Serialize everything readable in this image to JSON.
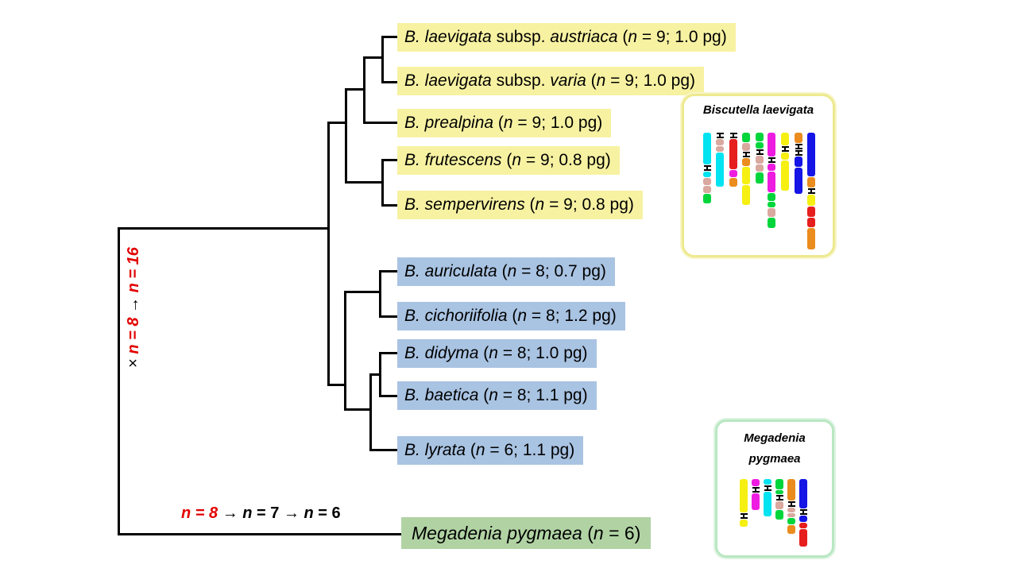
{
  "figure": {
    "background": "#ffffff",
    "branch_color": "#000000",
    "red_accent": "#e20000",
    "group_colors": {
      "n9_yellow": "#f7f2a2",
      "n8_blue": "#a9c3e2",
      "outgroup_green": "#b1d3a4"
    }
  },
  "tree": {
    "newick": "(((((B_laevigata_subsp_austriaca,B_laevigata_subsp_varia),B_prealpina),(B_frutescens,B_sempervirens)),((B_auriculata,B_cichoriifolia),((B_didyma,B_baetica),B_lyrata))),Megadenia_pygmaea);"
  },
  "taxa": [
    {
      "group": "n9_yellow",
      "bg": "#f7f2a2",
      "runs": [
        {
          "t": "B. laevigata",
          "i": 1
        },
        {
          "t": " subsp. "
        },
        {
          "t": "austriaca",
          "i": 1
        },
        {
          "t": " ("
        },
        {
          "t": "n",
          "i": 1
        },
        {
          "t": " = 9; 1.0 pg)"
        }
      ]
    },
    {
      "group": "n9_yellow",
      "bg": "#f7f2a2",
      "runs": [
        {
          "t": "B. laevigata",
          "i": 1
        },
        {
          "t": " subsp. "
        },
        {
          "t": "varia",
          "i": 1
        },
        {
          "t": " ("
        },
        {
          "t": "n",
          "i": 1
        },
        {
          "t": " = 9; 1.0 pg)"
        }
      ]
    },
    {
      "group": "n9_yellow",
      "bg": "#f7f2a2",
      "runs": [
        {
          "t": "B. prealpina",
          "i": 1
        },
        {
          "t": " ("
        },
        {
          "t": "n",
          "i": 1
        },
        {
          "t": " = 9; 1.0 pg)"
        }
      ]
    },
    {
      "group": "n9_yellow",
      "bg": "#f7f2a2",
      "runs": [
        {
          "t": "B. frutescens",
          "i": 1
        },
        {
          "t": " ("
        },
        {
          "t": "n",
          "i": 1
        },
        {
          "t": " = 9; 0.8 pg)"
        }
      ]
    },
    {
      "group": "n9_yellow",
      "bg": "#f7f2a2",
      "runs": [
        {
          "t": "B. sempervirens",
          "i": 1
        },
        {
          "t": " ("
        },
        {
          "t": "n",
          "i": 1
        },
        {
          "t": " = 9; 0.8 pg)"
        }
      ]
    },
    {
      "group": "n8_blue",
      "bg": "#a9c3e2",
      "runs": [
        {
          "t": "B. auriculata",
          "i": 1
        },
        {
          "t": " ("
        },
        {
          "t": "n",
          "i": 1
        },
        {
          "t": " = 8; 0.7 pg)"
        }
      ]
    },
    {
      "group": "n8_blue",
      "bg": "#a9c3e2",
      "runs": [
        {
          "t": "B. cichoriifolia",
          "i": 1
        },
        {
          "t": " ("
        },
        {
          "t": "n",
          "i": 1
        },
        {
          "t": " = 8; 1.2 pg)"
        }
      ]
    },
    {
      "group": "n8_blue",
      "bg": "#a9c3e2",
      "runs": [
        {
          "t": "B. didyma",
          "i": 1
        },
        {
          "t": " ("
        },
        {
          "t": "n",
          "i": 1
        },
        {
          "t": " = 8; 1.0 pg)"
        }
      ]
    },
    {
      "group": "n8_blue",
      "bg": "#a9c3e2",
      "runs": [
        {
          "t": "B. baetica",
          "i": 1
        },
        {
          "t": " ("
        },
        {
          "t": "n",
          "i": 1
        },
        {
          "t": " = 8; 1.1 pg)"
        }
      ]
    },
    {
      "group": "n8_blue",
      "bg": "#a9c3e2",
      "runs": [
        {
          "t": "B. lyrata",
          "i": 1
        },
        {
          "t": " ("
        },
        {
          "t": "n",
          "i": 1
        },
        {
          "t": " = 6; 1.1 pg)"
        }
      ]
    },
    {
      "group": "outgroup_green",
      "bg": "#b1d3a4",
      "runs": [
        {
          "t": "Megadenia pygmaea",
          "i": 1
        },
        {
          "t": " ("
        },
        {
          "t": "n",
          "i": 1
        },
        {
          "t": " = 6)"
        }
      ]
    }
  ],
  "annotations": {
    "vertical_branch": {
      "runs": [
        {
          "t": "× "
        },
        {
          "t": "n = 8",
          "i": 1,
          "b": 1,
          "c": "#e20000"
        },
        {
          "t": " → ",
          "b": 1
        },
        {
          "t": "n = 16",
          "i": 1,
          "b": 1,
          "c": "#e20000"
        }
      ]
    },
    "bottom_branch": {
      "runs": [
        {
          "t": "n = 8",
          "i": 1,
          "b": 1,
          "c": "#e20000"
        },
        {
          "t": " → "
        },
        {
          "t": "n",
          "i": 1,
          "b": 1
        },
        {
          "t": " = 7",
          "b": 1
        },
        {
          "t": " → "
        },
        {
          "t": "n",
          "i": 1,
          "b": 1
        },
        {
          "t": " =  6",
          "b": 1
        }
      ]
    }
  },
  "palette": {
    "cyan": "#00e3f0",
    "tan": "#d9a89f",
    "green": "#00d53c",
    "red": "#e61e1e",
    "magenta": "#ee1ce0",
    "orange": "#ea8c1e",
    "yellow": "#f6ef12",
    "blue": "#1515e6"
  },
  "insets": [
    {
      "title_lines": [
        "Biscutella laevigata"
      ],
      "border": "#ede98f",
      "chromosomes": [
        [
          [
            "cyan",
            40
          ],
          "CEN",
          [
            "cyan",
            7
          ],
          [
            "tan",
            9
          ],
          [
            "tan",
            9
          ],
          [
            "green",
            12
          ]
        ],
        [
          "CEN",
          [
            "tan",
            8
          ],
          [
            "tan",
            7
          ],
          [
            "cyan",
            43
          ]
        ],
        [
          "CEN",
          [
            "red",
            38
          ],
          [
            "magenta",
            9
          ],
          [
            "orange",
            11
          ]
        ],
        [
          [
            "green",
            12
          ],
          [
            "tan",
            10
          ],
          "CEN",
          [
            "orange",
            10
          ],
          [
            "yellow",
            22
          ],
          [
            "yellow",
            25
          ]
        ],
        [
          [
            "green",
            11
          ],
          [
            "green",
            8
          ],
          "CEN",
          [
            "tan",
            10
          ],
          [
            "tan",
            9
          ],
          [
            "green",
            14
          ]
        ],
        [
          [
            "magenta",
            30
          ],
          "CEN",
          [
            "magenta",
            9
          ],
          [
            "magenta",
            26
          ],
          [
            "green",
            10
          ],
          [
            "green",
            7
          ],
          [
            "tan",
            11
          ],
          [
            "green",
            13
          ]
        ],
        [
          [
            "yellow",
            16
          ],
          "CEN",
          [
            "yellow",
            9
          ],
          [
            "yellow",
            38
          ]
        ],
        [
          [
            "orange",
            13
          ],
          "CEN",
          "CEN",
          [
            "blue",
            13
          ],
          [
            "blue",
            33
          ]
        ],
        [
          [
            "blue",
            55
          ],
          [
            "orange",
            13
          ],
          "CEN",
          [
            "yellow",
            14
          ],
          [
            "red",
            13
          ],
          [
            "red",
            12
          ],
          [
            "orange",
            27
          ]
        ]
      ]
    },
    {
      "title_lines": [
        "Megadenia",
        "pygmaea"
      ],
      "border": "#b9e7c2",
      "chromosomes": [
        [
          [
            "yellow",
            42
          ],
          "CEN",
          [
            "yellow",
            9
          ]
        ],
        [
          [
            "magenta",
            9
          ],
          "CEN",
          [
            "magenta",
            21
          ]
        ],
        [
          [
            "cyan",
            7
          ],
          "CEN",
          [
            "cyan",
            31
          ]
        ],
        [
          [
            "green",
            13
          ],
          [
            "green",
            5
          ],
          "CEN",
          [
            "tan",
            10
          ],
          [
            "green",
            12
          ]
        ],
        [
          [
            "orange",
            27
          ],
          "CEN",
          [
            "tan",
            6
          ],
          [
            "tan",
            5
          ],
          [
            "green",
            8
          ],
          [
            "orange",
            11
          ]
        ],
        [
          [
            "blue",
            37
          ],
          "CEN",
          [
            "blue",
            8
          ],
          [
            "red",
            7
          ],
          [
            "red",
            22
          ]
        ]
      ]
    }
  ]
}
